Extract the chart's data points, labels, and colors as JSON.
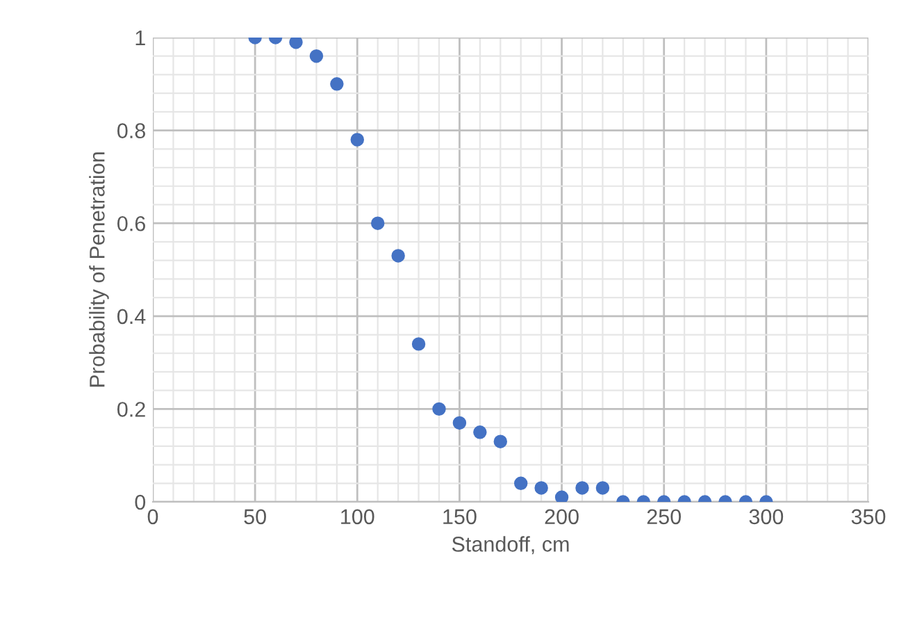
{
  "chart_data": {
    "type": "scatter",
    "xlabel": "Standoff, cm",
    "ylabel": "Probability of Penetration",
    "x": [
      50,
      60,
      70,
      80,
      90,
      100,
      110,
      120,
      130,
      140,
      150,
      160,
      170,
      180,
      190,
      200,
      210,
      220,
      230,
      240,
      250,
      260,
      270,
      280,
      290,
      300
    ],
    "series": [
      {
        "color": "#4472c4",
        "values": [
          1,
          1,
          0.99,
          0.96,
          0.9,
          0.78,
          0.6,
          0.53,
          0.34,
          0.2,
          0.17,
          0.15,
          0.13,
          0.04,
          0.03,
          0.01,
          0.03,
          0.03,
          0,
          0,
          0,
          0,
          0,
          0,
          0,
          0
        ]
      }
    ],
    "xlim": [
      0,
      350
    ],
    "xticks": [
      0,
      50,
      100,
      150,
      200,
      250,
      300,
      350
    ],
    "ylim": [
      0,
      1
    ],
    "yticks": [
      0,
      0.2,
      0.4,
      0.6,
      0.8,
      1
    ],
    "grid": true,
    "marker": "circle"
  }
}
